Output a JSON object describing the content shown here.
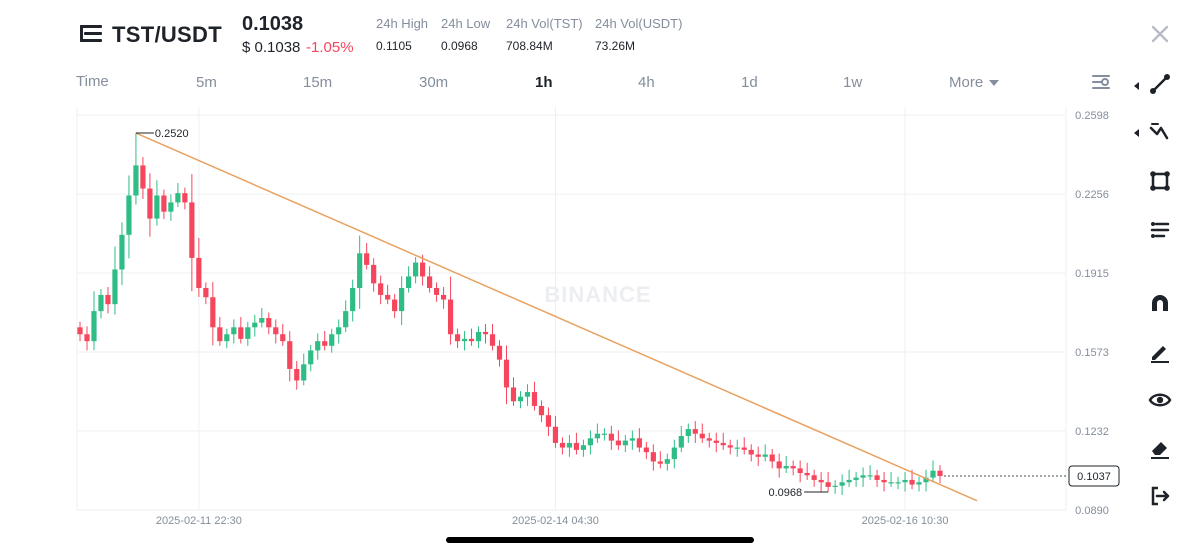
{
  "header": {
    "pair": "TST/USDT",
    "price": "0.1038",
    "usd_price": "$ 0.1038",
    "change": "-1.05%",
    "stats": [
      {
        "label": "24h High",
        "value": "0.1105"
      },
      {
        "label": "24h Low",
        "value": "0.0968"
      },
      {
        "label": "24h Vol(TST)",
        "value": "708.84M"
      },
      {
        "label": "24h Vol(USDT)",
        "value": "73.26M"
      }
    ]
  },
  "tabs": {
    "time_label": "Time",
    "items": [
      "5m",
      "15m",
      "30m",
      "1h",
      "4h",
      "1d",
      "1w"
    ],
    "active": "1h",
    "more_label": "More"
  },
  "colors": {
    "up": "#2ebd85",
    "down": "#f6465d",
    "trendline": "#e8a160",
    "grid": "#eef0f2",
    "axis_text": "#848e9c"
  },
  "toolbar": [
    "trendline-tool-icon",
    "fib-tool-icon",
    "rectangle-tool-icon",
    "brush-tool-icon",
    "magnet-icon",
    "pencil-icon",
    "eye-icon",
    "eraser-icon",
    "exit-icon"
  ],
  "chart_data": {
    "type": "candlestick",
    "watermark": "BINANCE",
    "y_ticks": [
      "0.2598",
      "0.2256",
      "0.1915",
      "0.1573",
      "0.1232",
      "0.0890"
    ],
    "ylim": [
      0.089,
      0.2598
    ],
    "x_ticks": [
      "2025-02-11 22:30",
      "2025-02-14 04:30",
      "2025-02-16 10:30"
    ],
    "annotations": {
      "high": {
        "label": "0.2520",
        "value": 0.252
      },
      "low": {
        "label": "0.0968",
        "value": 0.0968
      },
      "current": {
        "label": "0.1037",
        "value": 0.1037
      }
    },
    "trendline": {
      "from_value": 0.252,
      "to_value": 0.093
    },
    "closes": [
      0.165,
      0.162,
      0.175,
      0.182,
      0.178,
      0.193,
      0.208,
      0.225,
      0.238,
      0.228,
      0.215,
      0.225,
      0.218,
      0.222,
      0.226,
      0.222,
      0.198,
      0.185,
      0.181,
      0.168,
      0.162,
      0.165,
      0.168,
      0.163,
      0.168,
      0.17,
      0.172,
      0.168,
      0.165,
      0.162,
      0.15,
      0.145,
      0.152,
      0.158,
      0.162,
      0.16,
      0.165,
      0.168,
      0.175,
      0.185,
      0.2,
      0.195,
      0.187,
      0.182,
      0.18,
      0.175,
      0.185,
      0.19,
      0.196,
      0.19,
      0.185,
      0.182,
      0.18,
      0.165,
      0.162,
      0.163,
      0.162,
      0.166,
      0.165,
      0.16,
      0.154,
      0.142,
      0.136,
      0.138,
      0.14,
      0.134,
      0.13,
      0.125,
      0.118,
      0.116,
      0.118,
      0.115,
      0.117,
      0.12,
      0.122,
      0.122,
      0.119,
      0.117,
      0.119,
      0.12,
      0.116,
      0.114,
      0.11,
      0.109,
      0.111,
      0.116,
      0.121,
      0.124,
      0.122,
      0.12,
      0.119,
      0.118,
      0.117,
      0.116,
      0.116,
      0.115,
      0.113,
      0.112,
      0.113,
      0.11,
      0.107,
      0.108,
      0.107,
      0.105,
      0.104,
      0.102,
      0.101,
      0.099,
      0.0995,
      0.101,
      0.102,
      0.103,
      0.104,
      0.104,
      0.102,
      0.101,
      0.101,
      0.101,
      0.102,
      0.1,
      0.101,
      0.103,
      0.106,
      0.1037
    ]
  }
}
